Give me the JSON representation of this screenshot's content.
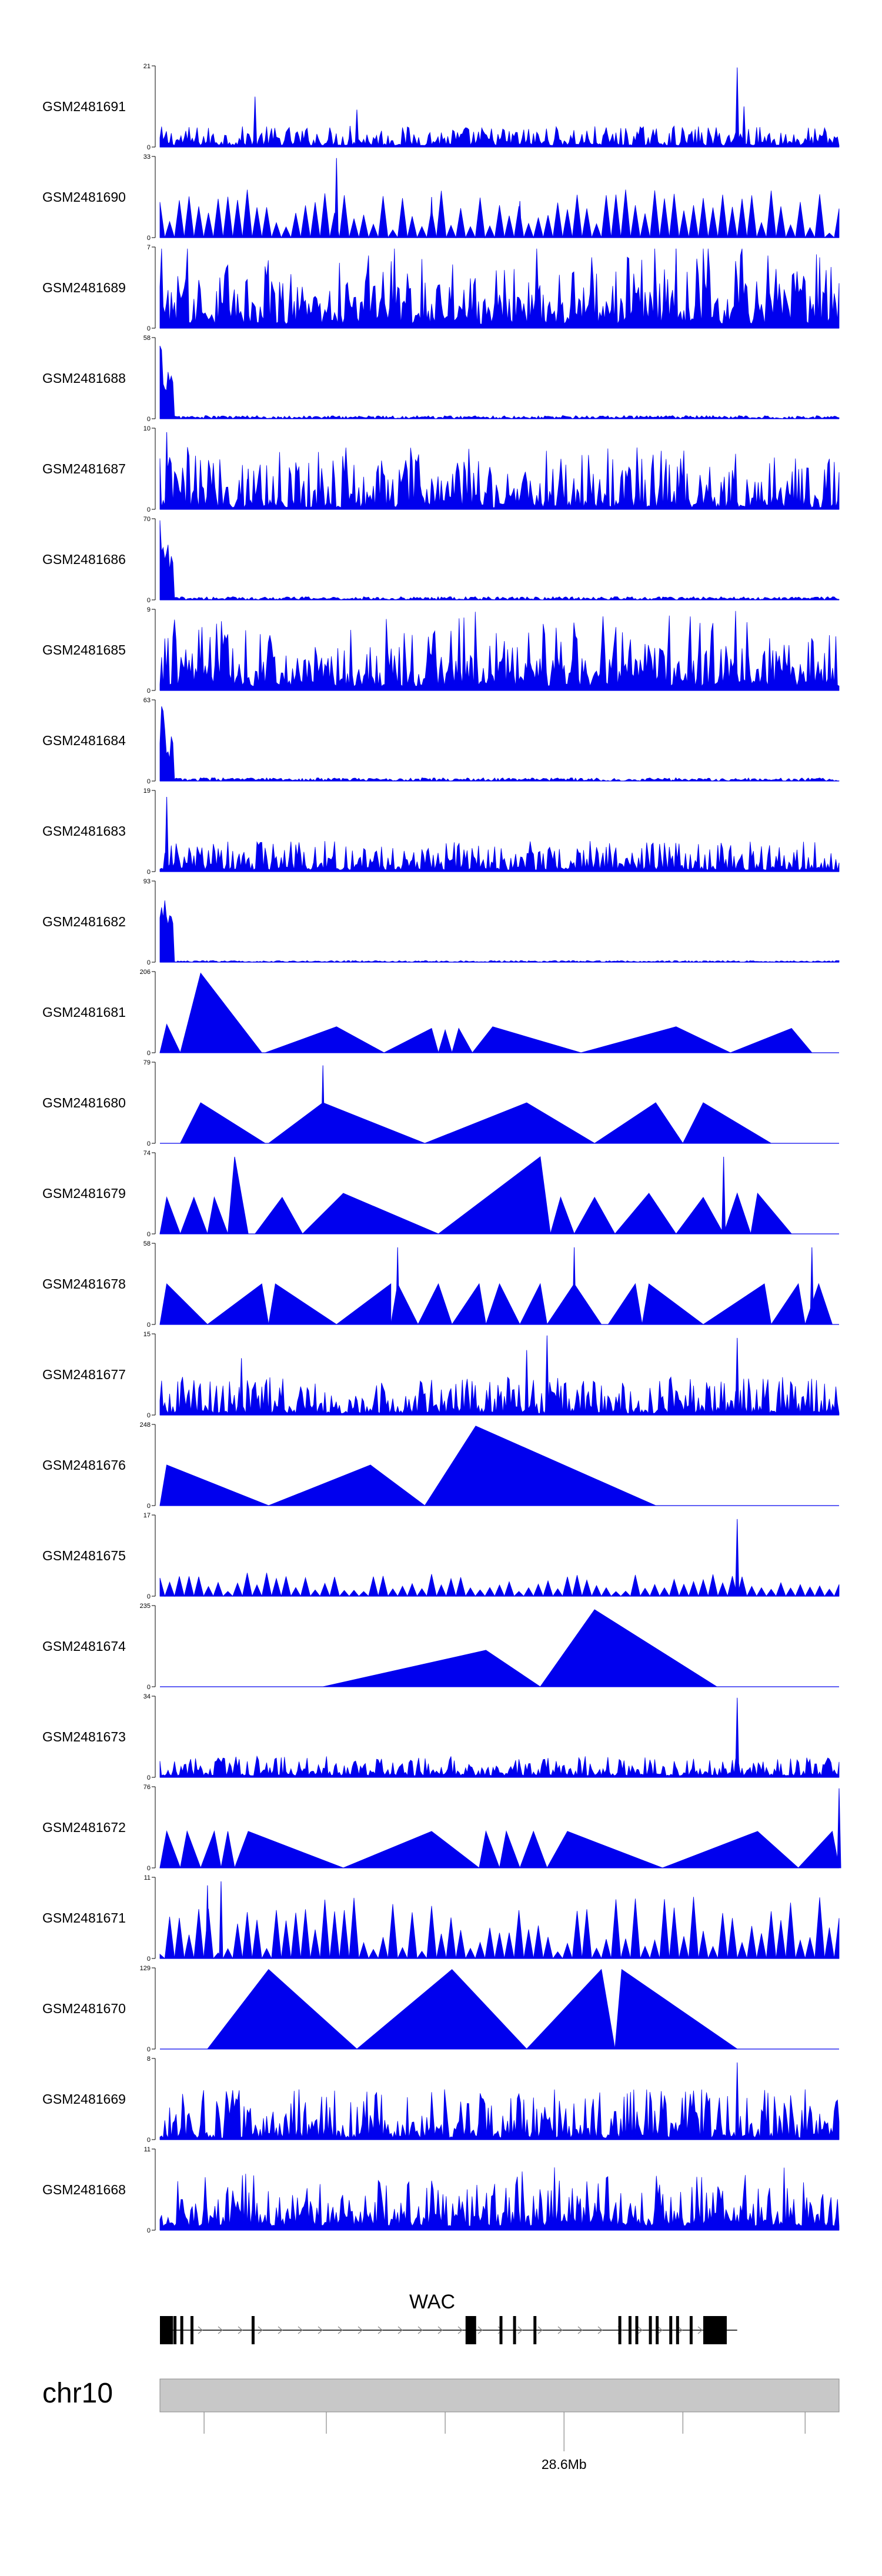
{
  "colors": {
    "signal": "#0000ee",
    "axis": "#000000",
    "ideogram": "#c8c8c8",
    "gene": "#000000"
  },
  "chart_data": {
    "type": "area",
    "tracks": [
      {
        "name": "GSM2481691",
        "ymax": "21",
        "ymin": "0",
        "style": "noise",
        "base": 0.08,
        "spikes": [
          [
            0.14,
            0.62
          ],
          [
            0.28,
            0.26
          ],
          [
            0.29,
            0.46
          ],
          [
            0.85,
            0.98
          ],
          [
            0.86,
            0.5
          ]
        ],
        "head": 0
      },
      {
        "name": "GSM2481690",
        "ymax": "33",
        "ymin": "0",
        "style": "sparse",
        "base": 0.35,
        "spikes": [
          [
            0.26,
            0.98
          ],
          [
            0.4,
            0.5
          ],
          [
            0.53,
            0.45
          ]
        ],
        "head": 0
      },
      {
        "name": "GSM2481689",
        "ymax": "7",
        "ymin": "0",
        "style": "dense",
        "base": 0.5,
        "spikes": [
          [
            0.76,
            0.98
          ]
        ],
        "head": 0
      },
      {
        "name": "GSM2481688",
        "ymax": "58",
        "ymin": "0",
        "style": "head",
        "base": 0.02,
        "spikes": [],
        "head": 1
      },
      {
        "name": "GSM2481687",
        "ymax": "10",
        "ymin": "0",
        "style": "noise",
        "base": 0.25,
        "spikes": [
          [
            0.01,
            0.95
          ],
          [
            0.13,
            0.5
          ]
        ],
        "head": 0
      },
      {
        "name": "GSM2481686",
        "ymax": "70",
        "ymin": "0",
        "style": "head",
        "base": 0.02,
        "spikes": [],
        "head": 1
      },
      {
        "name": "GSM2481685",
        "ymax": "9",
        "ymin": "0",
        "style": "dense",
        "base": 0.45,
        "spikes": [],
        "head": 0
      },
      {
        "name": "GSM2481684",
        "ymax": "63",
        "ymin": "0",
        "style": "head",
        "base": 0.02,
        "spikes": [],
        "head": 1
      },
      {
        "name": "GSM2481683",
        "ymax": "19",
        "ymin": "0",
        "style": "noise",
        "base": 0.12,
        "spikes": [
          [
            0.01,
            0.92
          ]
        ],
        "head": 0
      },
      {
        "name": "GSM2481682",
        "ymax": "93",
        "ymin": "0",
        "style": "head",
        "base": 0.01,
        "spikes": [],
        "head": 1
      },
      {
        "name": "GSM2481681",
        "ymax": "206",
        "ymin": "0",
        "style": "peaks",
        "base": 0,
        "spikes": [],
        "head": 0,
        "tri": [
          [
            0.0,
            0.03,
            0.01,
            0.35
          ],
          [
            0.03,
            0.15,
            0.06,
            0.98
          ],
          [
            0.155,
            0.33,
            0.26,
            0.32
          ],
          [
            0.33,
            0.41,
            0.4,
            0.3
          ],
          [
            0.41,
            0.43,
            0.42,
            0.28
          ],
          [
            0.43,
            0.46,
            0.44,
            0.3
          ],
          [
            0.46,
            0.62,
            0.49,
            0.32
          ],
          [
            0.62,
            0.84,
            0.76,
            0.32
          ],
          [
            0.84,
            0.96,
            0.93,
            0.3
          ]
        ]
      },
      {
        "name": "GSM2481680",
        "ymax": "79",
        "ymin": "0",
        "style": "peaks",
        "base": 0,
        "spikes": [
          [
            0.24,
            0.96
          ],
          [
            0.54,
            0.35
          ]
        ],
        "head": 0,
        "tri": [
          [
            0.03,
            0.155,
            0.06,
            0.5
          ],
          [
            0.16,
            0.39,
            0.24,
            0.5
          ],
          [
            0.39,
            0.64,
            0.54,
            0.5
          ],
          [
            0.64,
            0.77,
            0.73,
            0.5
          ],
          [
            0.77,
            0.9,
            0.8,
            0.5
          ]
        ]
      },
      {
        "name": "GSM2481679",
        "ymax": "74",
        "ymin": "0",
        "style": "peaks",
        "base": 0,
        "spikes": [
          [
            0.56,
            0.95
          ],
          [
            0.83,
            0.95
          ]
        ],
        "head": 0,
        "tri": [
          [
            0.0,
            0.03,
            0.01,
            0.45
          ],
          [
            0.03,
            0.07,
            0.05,
            0.45
          ],
          [
            0.07,
            0.1,
            0.08,
            0.45
          ],
          [
            0.1,
            0.13,
            0.11,
            0.95
          ],
          [
            0.14,
            0.21,
            0.18,
            0.45
          ],
          [
            0.21,
            0.41,
            0.27,
            0.5
          ],
          [
            0.41,
            0.575,
            0.56,
            0.95
          ],
          [
            0.575,
            0.61,
            0.59,
            0.45
          ],
          [
            0.61,
            0.67,
            0.64,
            0.45
          ],
          [
            0.67,
            0.76,
            0.72,
            0.5
          ],
          [
            0.76,
            0.83,
            0.8,
            0.45
          ],
          [
            0.83,
            0.87,
            0.85,
            0.5
          ],
          [
            0.87,
            0.93,
            0.88,
            0.5
          ]
        ]
      },
      {
        "name": "GSM2481678",
        "ymax": "58",
        "ymin": "0",
        "style": "peaks",
        "base": 0,
        "spikes": [
          [
            0.35,
            0.95
          ],
          [
            0.61,
            0.95
          ],
          [
            0.89,
            0.45
          ],
          [
            0.96,
            0.95
          ]
        ],
        "head": 0,
        "tri": [
          [
            0.0,
            0.07,
            0.01,
            0.5
          ],
          [
            0.07,
            0.16,
            0.15,
            0.5
          ],
          [
            0.16,
            0.26,
            0.17,
            0.5
          ],
          [
            0.26,
            0.34,
            0.34,
            0.5
          ],
          [
            0.34,
            0.38,
            0.35,
            0.5
          ],
          [
            0.38,
            0.43,
            0.41,
            0.5
          ],
          [
            0.43,
            0.48,
            0.47,
            0.5
          ],
          [
            0.48,
            0.53,
            0.5,
            0.5
          ],
          [
            0.53,
            0.57,
            0.56,
            0.5
          ],
          [
            0.57,
            0.65,
            0.61,
            0.5
          ],
          [
            0.66,
            0.71,
            0.7,
            0.5
          ],
          [
            0.71,
            0.8,
            0.72,
            0.5
          ],
          [
            0.8,
            0.9,
            0.89,
            0.5
          ],
          [
            0.9,
            0.95,
            0.94,
            0.5
          ],
          [
            0.95,
            0.99,
            0.97,
            0.5
          ]
        ]
      },
      {
        "name": "GSM2481677",
        "ymax": "15",
        "ymin": "0",
        "style": "noise",
        "base": 0.15,
        "spikes": [
          [
            0.12,
            0.7
          ],
          [
            0.54,
            0.8
          ],
          [
            0.57,
            0.98
          ],
          [
            0.85,
            0.95
          ]
        ],
        "head": 0
      },
      {
        "name": "GSM2481676",
        "ymax": "248",
        "ymin": "0",
        "style": "peaks",
        "base": 0,
        "spikes": [],
        "head": 0,
        "tri": [
          [
            0.0,
            0.16,
            0.01,
            0.5
          ],
          [
            0.16,
            0.39,
            0.31,
            0.5
          ],
          [
            0.39,
            0.73,
            0.465,
            0.98
          ]
        ]
      },
      {
        "name": "GSM2481675",
        "ymax": "17",
        "ymin": "0",
        "style": "sparse",
        "base": 0.15,
        "spikes": [
          [
            0.85,
            0.95
          ]
        ],
        "head": 0
      },
      {
        "name": "GSM2481674",
        "ymax": "235",
        "ymin": "0",
        "style": "peaks",
        "base": 0,
        "spikes": [],
        "head": 0,
        "tri": [
          [
            0.24,
            0.56,
            0.48,
            0.45
          ],
          [
            0.56,
            0.82,
            0.64,
            0.95
          ]
        ]
      },
      {
        "name": "GSM2481673",
        "ymax": "34",
        "ymin": "0",
        "style": "noise",
        "base": 0.08,
        "spikes": [
          [
            0.85,
            0.98
          ]
        ],
        "head": 0
      },
      {
        "name": "GSM2481672",
        "ymax": "76",
        "ymin": "0",
        "style": "peaks",
        "base": 0,
        "spikes": [
          [
            1.0,
            0.98
          ]
        ],
        "head": 0,
        "tri": [
          [
            0.0,
            0.03,
            0.01,
            0.45
          ],
          [
            0.03,
            0.06,
            0.04,
            0.45
          ],
          [
            0.06,
            0.09,
            0.08,
            0.45
          ],
          [
            0.09,
            0.11,
            0.1,
            0.45
          ],
          [
            0.11,
            0.27,
            0.13,
            0.45
          ],
          [
            0.27,
            0.47,
            0.4,
            0.45
          ],
          [
            0.47,
            0.5,
            0.48,
            0.45
          ],
          [
            0.5,
            0.53,
            0.51,
            0.45
          ],
          [
            0.53,
            0.57,
            0.55,
            0.45
          ],
          [
            0.57,
            0.74,
            0.6,
            0.45
          ],
          [
            0.74,
            0.94,
            0.88,
            0.45
          ],
          [
            0.94,
            1.0,
            0.99,
            0.45
          ]
        ]
      },
      {
        "name": "GSM2481671",
        "ymax": "11",
        "ymin": "0",
        "style": "sparse",
        "base": 0.45,
        "spikes": [
          [
            0.07,
            0.9
          ],
          [
            0.09,
            0.95
          ]
        ],
        "head": 0
      },
      {
        "name": "GSM2481670",
        "ymax": "129",
        "ymin": "0",
        "style": "peaks",
        "base": 0,
        "spikes": [],
        "head": 0,
        "tri": [
          [
            0.07,
            0.29,
            0.16,
            0.98
          ],
          [
            0.29,
            0.54,
            0.43,
            0.98
          ],
          [
            0.54,
            0.67,
            0.65,
            0.98
          ],
          [
            0.67,
            0.85,
            0.68,
            0.98
          ]
        ]
      },
      {
        "name": "GSM2481669",
        "ymax": "8",
        "ymin": "0",
        "style": "noise",
        "base": 0.2,
        "spikes": [
          [
            0.85,
            0.95
          ]
        ],
        "head": 0
      },
      {
        "name": "GSM2481668",
        "ymax": "11",
        "ymin": "0",
        "style": "dense",
        "base": 0.35,
        "spikes": [],
        "head": 0
      }
    ],
    "gene": {
      "name": "WAC",
      "exons": [
        0.0,
        0.015,
        0.02,
        0.03,
        0.045,
        0.135,
        0.45,
        0.5,
        0.52,
        0.55,
        0.675,
        0.69,
        0.7,
        0.72,
        0.73,
        0.75,
        0.76,
        0.78,
        0.8
      ]
    },
    "chromosome": {
      "label": "chr10",
      "position_label": "28.6Mb",
      "labeled_tick": 0.595
    }
  }
}
